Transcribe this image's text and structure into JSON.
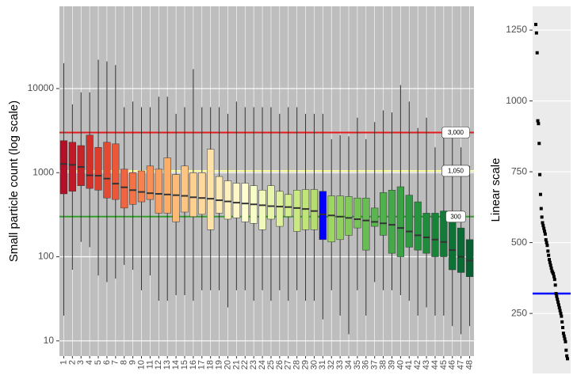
{
  "chart_data": [
    {
      "type": "box",
      "y_label": "Small particle count (log scale)",
      "log_scale": true,
      "grid": true,
      "ylim": [
        6.6,
        95000
      ],
      "yticks": [
        10,
        100,
        1000,
        10000
      ],
      "categories": [
        "1",
        "2",
        "3",
        "4",
        "5",
        "6",
        "7",
        "8",
        "9",
        "10",
        "11",
        "12",
        "13",
        "14",
        "15",
        "16",
        "17",
        "18",
        "19",
        "20",
        "21",
        "22",
        "23",
        "24",
        "25",
        "26",
        "27",
        "28",
        "29",
        "30",
        "31",
        "32",
        "33",
        "34",
        "35",
        "36",
        "37",
        "38",
        "39",
        "40",
        "41",
        "42",
        "43",
        "44",
        "45",
        "46",
        "47",
        "48"
      ],
      "whisker_low": [
        20,
        70,
        150,
        130,
        60,
        50,
        55,
        80,
        70,
        40,
        60,
        30,
        30,
        35,
        35,
        30,
        40,
        40,
        40,
        25,
        40,
        40,
        30,
        40,
        30,
        40,
        30,
        40,
        30,
        30,
        18,
        40,
        20,
        12,
        40,
        20,
        50,
        40,
        40,
        35,
        30,
        20,
        25,
        20,
        20,
        15,
        12,
        15
      ],
      "q1": [
        560,
        600,
        700,
        650,
        620,
        500,
        480,
        380,
        420,
        450,
        480,
        330,
        330,
        260,
        340,
        300,
        320,
        210,
        330,
        280,
        290,
        260,
        250,
        210,
        280,
        230,
        300,
        200,
        210,
        210,
        160,
        150,
        160,
        180,
        220,
        120,
        230,
        180,
        110,
        100,
        130,
        120,
        110,
        100,
        100,
        70,
        65,
        58
      ],
      "median": [
        1270,
        1240,
        1170,
        930,
        920,
        850,
        740,
        670,
        620,
        590,
        570,
        560,
        550,
        540,
        530,
        510,
        500,
        490,
        470,
        455,
        440,
        430,
        420,
        410,
        400,
        395,
        390,
        380,
        370,
        350,
        320,
        310,
        300,
        290,
        280,
        270,
        260,
        250,
        240,
        220,
        200,
        180,
        170,
        160,
        150,
        120,
        100,
        90
      ],
      "q3": [
        2400,
        2300,
        2100,
        2800,
        2000,
        2300,
        2200,
        1100,
        1000,
        1050,
        1200,
        1100,
        1500,
        950,
        1200,
        1000,
        1000,
        1900,
        900,
        800,
        750,
        750,
        700,
        620,
        700,
        600,
        550,
        620,
        630,
        630,
        600,
        530,
        530,
        520,
        500,
        500,
        380,
        580,
        620,
        680,
        540,
        450,
        330,
        330,
        350,
        280,
        220,
        160
      ],
      "whisker_high": [
        20000,
        6500,
        9000,
        9000,
        22000,
        21000,
        19000,
        6000,
        7000,
        6000,
        6000,
        8000,
        8000,
        5000,
        6000,
        17000,
        6000,
        6000,
        6000,
        5000,
        7000,
        6000,
        6000,
        6000,
        6000,
        5000,
        6000,
        6000,
        5000,
        5000,
        5000,
        2500,
        2800,
        2700,
        4500,
        2500,
        4000,
        5500,
        5200,
        11000,
        7000,
        3400,
        4500,
        2000,
        3000,
        2700,
        2000,
        1200
      ],
      "colors": [
        "#b40f26",
        "#be1a28",
        "#c8232a",
        "#d3302b",
        "#dc3d2d",
        "#e34a33",
        "#ea5739",
        "#f06440",
        "#f47346",
        "#f7824e",
        "#f99157",
        "#fba060",
        "#fcae69",
        "#fdba75",
        "#fdc582",
        "#fed08e",
        "#fed99b",
        "#fee2a7",
        "#feeab3",
        "#fff1be",
        "#fff7c8",
        "#fefdd0",
        "#f8fcc6",
        "#f0f9b9",
        "#e7f5ab",
        "#def19d",
        "#d4ed90",
        "#cae983",
        "#bfe478",
        "#b4df6e",
        "#0000ff",
        "#9ed565",
        "#91cf60",
        "#84c95c",
        "#77c358",
        "#69bd54",
        "#5cb650",
        "#50b04c",
        "#45a949",
        "#3aa245",
        "#309b42",
        "#27943f",
        "#1f8c3c",
        "#188439",
        "#127b37",
        "#0d7335",
        "#096a33",
        "#066130"
      ],
      "reference_lines": [
        {
          "value": 3000,
          "label": "3,000",
          "color": "#e41a1c"
        },
        {
          "value": 1050,
          "label": "1,050",
          "color": "#ffff99"
        },
        {
          "value": 300,
          "label": "300",
          "color": "#33a02c"
        }
      ]
    },
    {
      "type": "scatter",
      "y_label": "Linear scale",
      "grid": true,
      "ylim": [
        38,
        1334
      ],
      "yticks": [
        250,
        500,
        750,
        1000,
        1250
      ],
      "values": [
        1270,
        1240,
        1170,
        930,
        920,
        850,
        740,
        670,
        620,
        590,
        570,
        560,
        550,
        540,
        530,
        510,
        500,
        490,
        470,
        455,
        440,
        430,
        420,
        410,
        400,
        395,
        390,
        380,
        370,
        350,
        320,
        310,
        300,
        290,
        280,
        270,
        260,
        250,
        240,
        220,
        200,
        180,
        170,
        160,
        150,
        120,
        100,
        90
      ],
      "reference_value": 320,
      "reference_color": "#0000ff",
      "color": "#000000"
    }
  ]
}
